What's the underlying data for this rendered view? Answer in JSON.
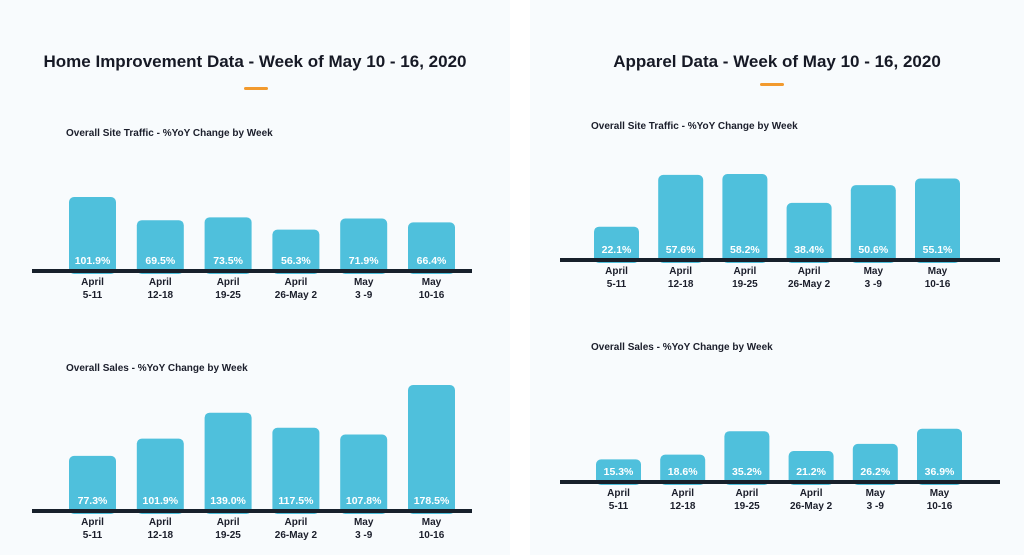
{
  "colors": {
    "bar": "#4fc0dc",
    "baseline": "#17202b",
    "accent": "#f29a2e"
  },
  "panels": [
    {
      "title": "Home Improvement Data - Week of May 10 - 16, 2020",
      "charts": [
        {
          "subtitle": "Overall Site Traffic - %YoY Change by Week"
        },
        {
          "subtitle": "Overall Sales - %YoY Change by Week"
        }
      ]
    },
    {
      "title": "Apparel Data - Week of May 10 - 16, 2020",
      "charts": [
        {
          "subtitle": "Overall Site Traffic - %YoY Change by Week"
        },
        {
          "subtitle": "Overall Sales - %YoY Change by Week"
        }
      ]
    }
  ],
  "chart_data": [
    {
      "type": "bar",
      "title": "Overall Site Traffic - %YoY Change by Week",
      "categories": [
        [
          "April",
          "5-11"
        ],
        [
          "April",
          "12-18"
        ],
        [
          "April",
          "19-25"
        ],
        [
          "April",
          "26-May 2"
        ],
        [
          "May",
          "3 -9"
        ],
        [
          "May",
          "10-16"
        ]
      ],
      "values": [
        101.9,
        69.5,
        73.5,
        56.3,
        71.9,
        66.4
      ],
      "value_labels": [
        "101.9%",
        "69.5%",
        "73.5%",
        "56.3%",
        "71.9%",
        "66.4%"
      ]
    },
    {
      "type": "bar",
      "title": "Overall Sales - %YoY Change by Week",
      "categories": [
        [
          "April",
          "5-11"
        ],
        [
          "April",
          "12-18"
        ],
        [
          "April",
          "19-25"
        ],
        [
          "April",
          "26-May 2"
        ],
        [
          "May",
          "3 -9"
        ],
        [
          "May",
          "10-16"
        ]
      ],
      "values": [
        77.3,
        101.9,
        139.0,
        117.5,
        107.8,
        178.5
      ],
      "value_labels": [
        "77.3%",
        "101.9%",
        "139.0%",
        "117.5%",
        "107.8%",
        "178.5%"
      ]
    },
    {
      "type": "bar",
      "title": "Overall Site Traffic - %YoY Change by Week",
      "categories": [
        [
          "April",
          "5-11"
        ],
        [
          "April",
          "12-18"
        ],
        [
          "April",
          "19-25"
        ],
        [
          "April",
          "26-May 2"
        ],
        [
          "May",
          "3 -9"
        ],
        [
          "May",
          "10-16"
        ]
      ],
      "values": [
        22.1,
        57.6,
        58.2,
        38.4,
        50.6,
        55.1
      ],
      "value_labels": [
        "22.1%",
        "57.6%",
        "58.2%",
        "38.4%",
        "50.6%",
        "55.1%"
      ]
    },
    {
      "type": "bar",
      "title": "Overall Sales - %YoY Change by Week",
      "categories": [
        [
          "April",
          "5-11"
        ],
        [
          "April",
          "12-18"
        ],
        [
          "April",
          "19-25"
        ],
        [
          "April",
          "26-May 2"
        ],
        [
          "May",
          "3 -9"
        ],
        [
          "May",
          "10-16"
        ]
      ],
      "values": [
        15.3,
        18.6,
        35.2,
        21.2,
        26.2,
        36.9
      ],
      "value_labels": [
        "15.3%",
        "18.6%",
        "35.2%",
        "21.2%",
        "26.2%",
        "36.9%"
      ]
    }
  ]
}
